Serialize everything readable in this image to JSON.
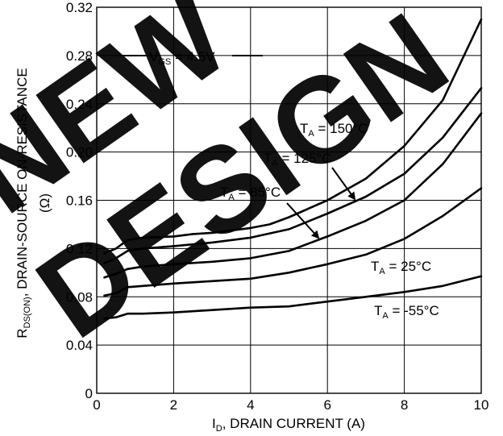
{
  "chart_data": {
    "type": "line",
    "title": "",
    "xlabel": {
      "prefix": "I",
      "sub": "D",
      "suffix": ", DRAIN CURRENT (A)"
    },
    "ylabel": {
      "prefix": "R",
      "sub": "DS(ON)",
      "suffix": ", DRAIN-SOURCE ON-RESISTANCE",
      "unit": "(Ω)"
    },
    "xlim": [
      0,
      10
    ],
    "ylim": [
      0,
      0.32
    ],
    "xticks": [
      0,
      2,
      4,
      6,
      8,
      10
    ],
    "xtick_labels": [
      "0",
      "2",
      "4",
      "6",
      "8",
      "10"
    ],
    "yticks": [
      0,
      0.04,
      0.08,
      0.12,
      0.16,
      0.2,
      0.24,
      0.28,
      0.32
    ],
    "ytick_labels": [
      "0",
      "0.04",
      "0.08",
      "0.12",
      "0.16",
      "0.20",
      "0.24",
      "0.28",
      "0.32"
    ],
    "grid": true,
    "condition": {
      "prefix": "V",
      "sub": "GS",
      "suffix": " = 4.5V"
    },
    "series": [
      {
        "name": "T_A = 150°C",
        "label": {
          "prefix": "T",
          "sub": "A",
          "suffix": " = 150°C"
        },
        "x": [
          0.2,
          0.5,
          0.8,
          1.2,
          2,
          2.5,
          3,
          4,
          4.5,
          5,
          6,
          7,
          8,
          9,
          10
        ],
        "y": [
          0.116,
          0.12,
          0.127,
          0.129,
          0.13,
          0.132,
          0.133,
          0.137,
          0.14,
          0.146,
          0.16,
          0.178,
          0.205,
          0.243,
          0.31
        ]
      },
      {
        "name": "T_A = 125°C",
        "label": {
          "prefix": "T",
          "sub": "A",
          "suffix": " = 125°C"
        },
        "x": [
          0.2,
          0.5,
          0.8,
          1.2,
          2,
          3,
          4,
          5,
          6,
          7,
          8,
          9,
          10
        ],
        "y": [
          0.108,
          0.112,
          0.118,
          0.12,
          0.122,
          0.125,
          0.129,
          0.136,
          0.149,
          0.163,
          0.182,
          0.212,
          0.253
        ]
      },
      {
        "name": "T_A = 85°C",
        "label": {
          "prefix": "T",
          "sub": "A",
          "suffix": " = 85°C"
        },
        "x": [
          0.2,
          0.5,
          0.8,
          1.2,
          2,
          3,
          4,
          5,
          6,
          7,
          8,
          9,
          10
        ],
        "y": [
          0.096,
          0.099,
          0.103,
          0.105,
          0.107,
          0.109,
          0.112,
          0.118,
          0.13,
          0.143,
          0.16,
          0.19,
          0.232
        ]
      },
      {
        "name": "T_A = 25°C",
        "label": {
          "prefix": "T",
          "sub": "A",
          "suffix": " = 25°C"
        },
        "x": [
          0.2,
          0.5,
          0.8,
          1.2,
          2,
          3,
          4,
          5,
          6,
          7,
          8,
          9,
          10
        ],
        "y": [
          0.081,
          0.083,
          0.088,
          0.089,
          0.091,
          0.093,
          0.095,
          0.1,
          0.107,
          0.115,
          0.128,
          0.147,
          0.17
        ]
      },
      {
        "name": "T_A = -55°C",
        "label": {
          "prefix": "T",
          "sub": "A",
          "suffix": " = -55°C"
        },
        "x": [
          0.2,
          0.5,
          0.8,
          1.2,
          2,
          3,
          4,
          5,
          6,
          7,
          8,
          9,
          10
        ],
        "y": [
          0.062,
          0.063,
          0.066,
          0.066,
          0.067,
          0.069,
          0.071,
          0.072,
          0.076,
          0.08,
          0.084,
          0.089,
          0.097
        ]
      }
    ]
  },
  "watermark": {
    "line1": "NEW",
    "line2": "DESIGN"
  }
}
